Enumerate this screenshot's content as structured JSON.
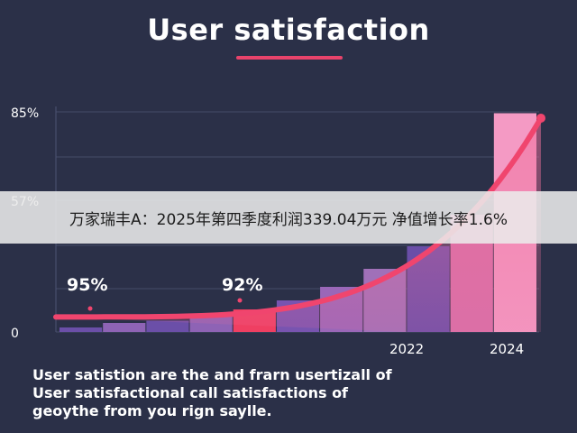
{
  "chart_data": {
    "type": "bar",
    "title": "User satisfaction",
    "y_tick_labels": [
      "0",
      "57%",
      "85%"
    ],
    "x_tick_labels": [
      "2022",
      "2024"
    ],
    "bar_values": [
      0.02,
      0.04,
      0.05,
      0.07,
      0.1,
      0.14,
      0.2,
      0.28,
      0.38,
      0.52,
      0.97
    ],
    "bar_colors": [
      "#6b4fa8",
      "#8e63b5",
      "#6b4fa8",
      "#8e63b5",
      "#ef3f62",
      "#7854b0",
      "#9a67b8",
      "#a070b8",
      "#6a4ea8",
      "#d86fa8",
      "#f49ac4"
    ],
    "trend_color": "#f0456e",
    "annotations": [
      "95%",
      "92%"
    ]
  },
  "banner": {
    "text": "万家瑞丰A：2025年第四季度利润339.04万元 净值增长率1.6%"
  },
  "caption": {
    "lines": [
      "User satistion are the and frarn usertizall of",
      "User satisfactional call satisfactions of",
      "geoythe from you rign saylle."
    ]
  }
}
